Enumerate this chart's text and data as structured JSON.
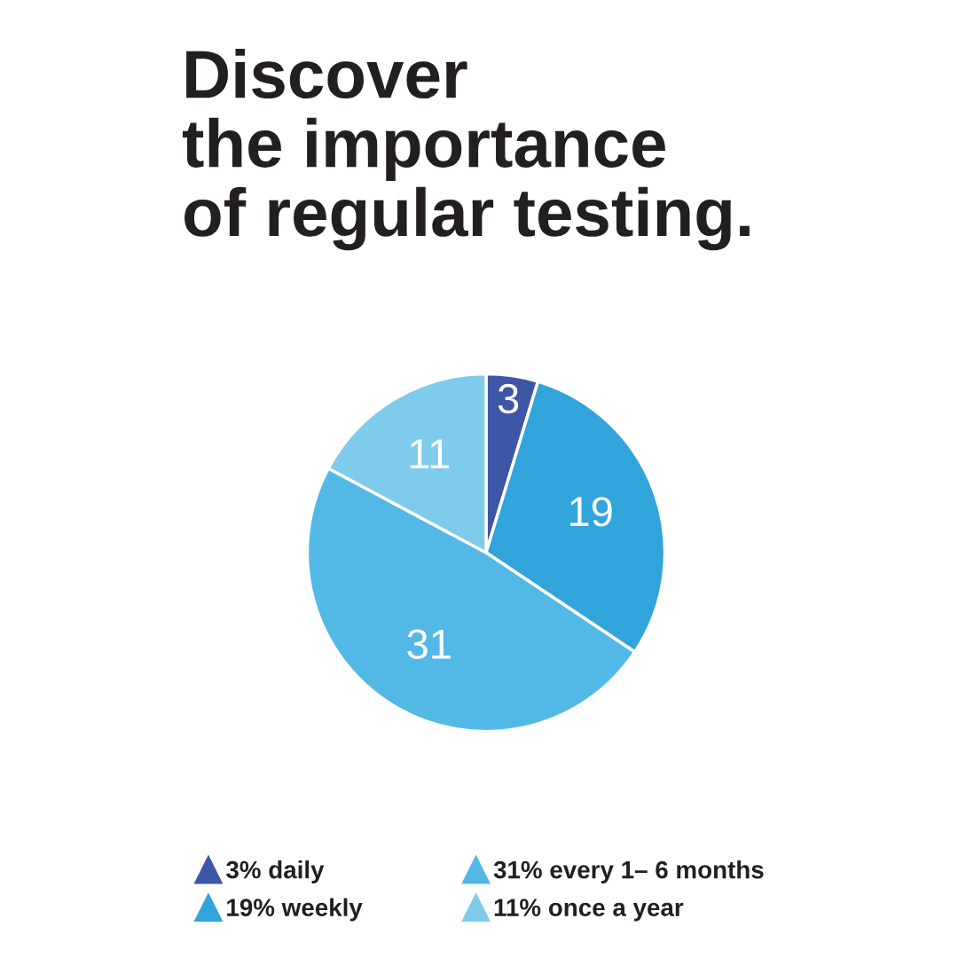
{
  "chart_data": {
    "type": "pie",
    "title": "Discover\nthe importance\nof regular testing.",
    "categories": [
      "3% daily",
      "19% weekly",
      "31% every 1– 6 months",
      "11% once a year"
    ],
    "values": [
      3,
      19,
      31,
      11
    ],
    "colors": [
      "#3d56a6",
      "#31a4db",
      "#52b9e6",
      "#7ecbec"
    ],
    "data_labels": true,
    "legend": "bottom",
    "marker": "triangle"
  }
}
